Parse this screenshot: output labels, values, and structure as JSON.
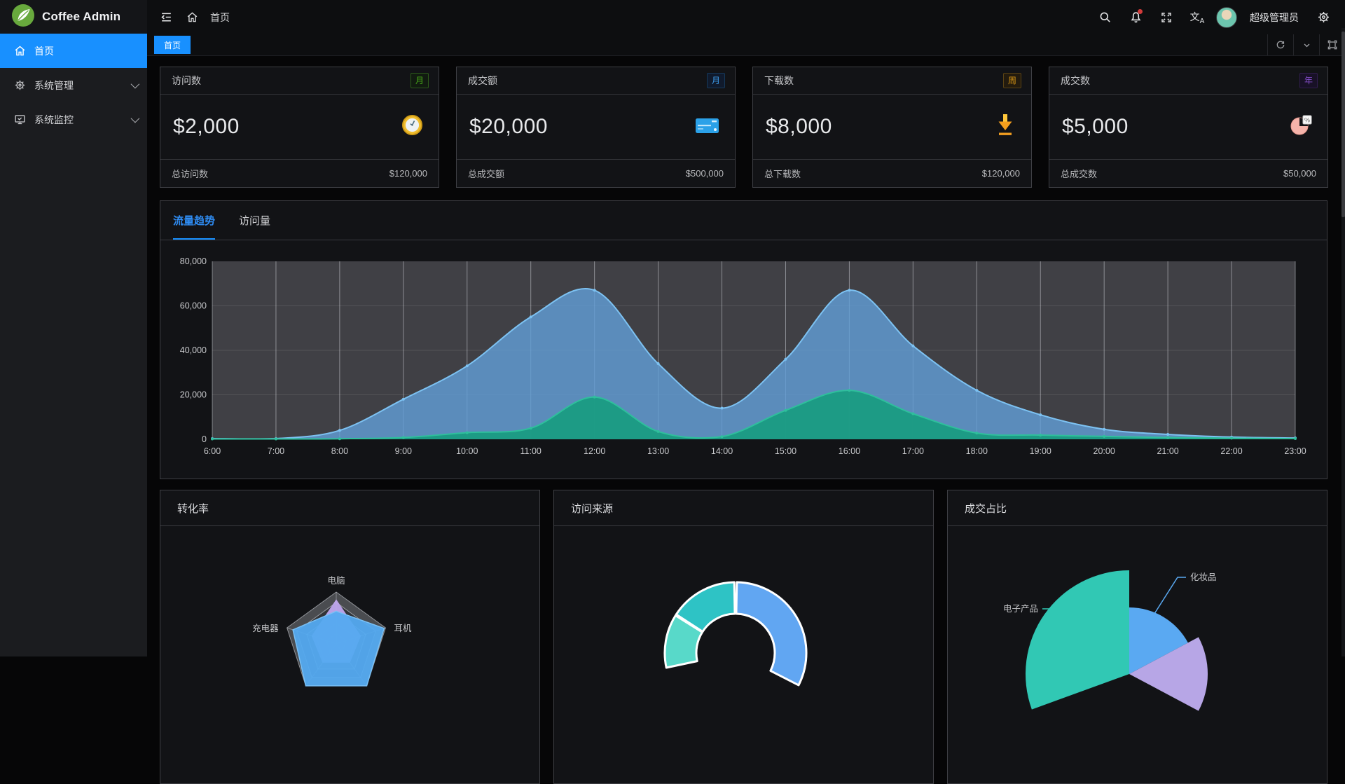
{
  "brand": {
    "name": "Coffee Admin"
  },
  "sidebar": {
    "items": [
      {
        "label": "首页",
        "icon": "home-icon",
        "active": true
      },
      {
        "label": "系统管理",
        "icon": "gear-icon",
        "active": false
      },
      {
        "label": "系统监控",
        "icon": "monitor-icon",
        "active": false
      }
    ]
  },
  "navbar": {
    "breadcrumb": "首页",
    "user": "超级管理员",
    "icons": [
      "collapse-sidebar-icon",
      "home-icon",
      "search-icon",
      "bell-icon",
      "fullscreen-icon",
      "translate-icon",
      "settings-icon"
    ]
  },
  "tabbar": {
    "tabs": [
      {
        "label": "首页",
        "active": true
      }
    ],
    "tools": [
      "refresh-icon",
      "chevron-down-icon",
      "maximize-icon"
    ]
  },
  "stat_cards": [
    {
      "title": "访问数",
      "badge": "月",
      "badge_color": "#49aa19",
      "value": "$2,000",
      "icon": "clock-icon",
      "footer_label": "总访问数",
      "footer_value": "$120,000"
    },
    {
      "title": "成交额",
      "badge": "月",
      "badge_color": "#3c9ae8",
      "value": "$20,000",
      "icon": "credit-card-icon",
      "footer_label": "总成交额",
      "footer_value": "$500,000"
    },
    {
      "title": "下载数",
      "badge": "周",
      "badge_color": "#d89614",
      "value": "$8,000",
      "icon": "download-icon",
      "footer_label": "总下载数",
      "footer_value": "$120,000"
    },
    {
      "title": "成交数",
      "badge": "年",
      "badge_color": "#854eca",
      "value": "$5,000",
      "icon": "pie-icon",
      "footer_label": "总成交数",
      "footer_value": "$50,000"
    }
  ],
  "trend_panel": {
    "tabs": [
      {
        "label": "流量趋势",
        "active": true
      },
      {
        "label": "访问量",
        "active": false
      }
    ]
  },
  "bottom_panels": [
    {
      "title": "转化率"
    },
    {
      "title": "访问来源"
    },
    {
      "title": "成交占比"
    }
  ],
  "chart_data": [
    {
      "type": "area",
      "panel_tab": "流量趋势",
      "x": [
        "6:00",
        "7:00",
        "8:00",
        "9:00",
        "10:00",
        "11:00",
        "12:00",
        "13:00",
        "14:00",
        "15:00",
        "16:00",
        "17:00",
        "18:00",
        "19:00",
        "20:00",
        "21:00",
        "22:00",
        "23:00"
      ],
      "ylim": [
        0,
        80000
      ],
      "yticks": [
        0,
        20000,
        40000,
        60000,
        80000
      ],
      "plot_bg": "#404045",
      "grid_vertical": "rgba(234,237,243,0.45)",
      "grid_horizontal": "rgba(255,255,255,0.10)",
      "legend_visible": false,
      "series": [
        {
          "name": "series_1",
          "line": "#7dc2f2",
          "fill": "rgba(98,158,214,0.82)",
          "values": [
            300,
            300,
            4000,
            18000,
            33000,
            55000,
            67000,
            34000,
            14000,
            36000,
            67000,
            42000,
            22000,
            11000,
            4500,
            2200,
            1000,
            600
          ]
        },
        {
          "name": "series_2",
          "line": "#2fbf9c",
          "fill": "rgba(26,156,130,0.95)",
          "values": [
            150,
            150,
            250,
            800,
            3000,
            5000,
            19000,
            3500,
            1200,
            13000,
            22000,
            11500,
            2800,
            1900,
            1300,
            800,
            500,
            300
          ]
        }
      ]
    },
    {
      "type": "radar",
      "title": "转化率",
      "axes_visible": [
        {
          "text": "电脑",
          "axis": 0
        },
        {
          "text": "耳机",
          "axis": 1
        },
        {
          "text": "充电器",
          "axis": 4
        }
      ],
      "max": 100,
      "series": [
        {
          "name": "series_purple",
          "fill": "rgba(192,168,239,0.95)",
          "values": [
            86,
            50,
            45,
            45,
            50
          ]
        },
        {
          "name": "series_blue",
          "fill": "rgba(84,170,240,0.95)",
          "stroke": "#79c0f5",
          "values": [
            63,
            97,
            100,
            100,
            88
          ]
        }
      ]
    },
    {
      "type": "donut",
      "title": "访问来源",
      "note": "partially cut off at viewport bottom; no labels visible",
      "slices": [
        {
          "color": "#61a6f2",
          "start_deg": 1,
          "end_deg": 117,
          "approx_pct": 32
        },
        {
          "color": "#58d9c9",
          "start_deg": 258,
          "end_deg": 302,
          "approx_pct": 12
        },
        {
          "color": "#2ec3c5",
          "start_deg": 303,
          "end_deg": 359,
          "approx_pct": 16
        }
      ]
    },
    {
      "type": "pie-rose",
      "title": "成交占比",
      "note": "partially cut off at viewport bottom",
      "slices": [
        {
          "label": "化妆品",
          "color": "#5aa9f2",
          "start_deg": 0,
          "end_deg": 62,
          "radius": 95
        },
        {
          "label": "",
          "color": "#b7a6e6",
          "start_deg": 62,
          "end_deg": 118,
          "radius": 112
        },
        {
          "label": "电子产品",
          "color": "#31c8b4",
          "start_deg": 250,
          "end_deg": 360,
          "radius": 148
        }
      ]
    }
  ]
}
